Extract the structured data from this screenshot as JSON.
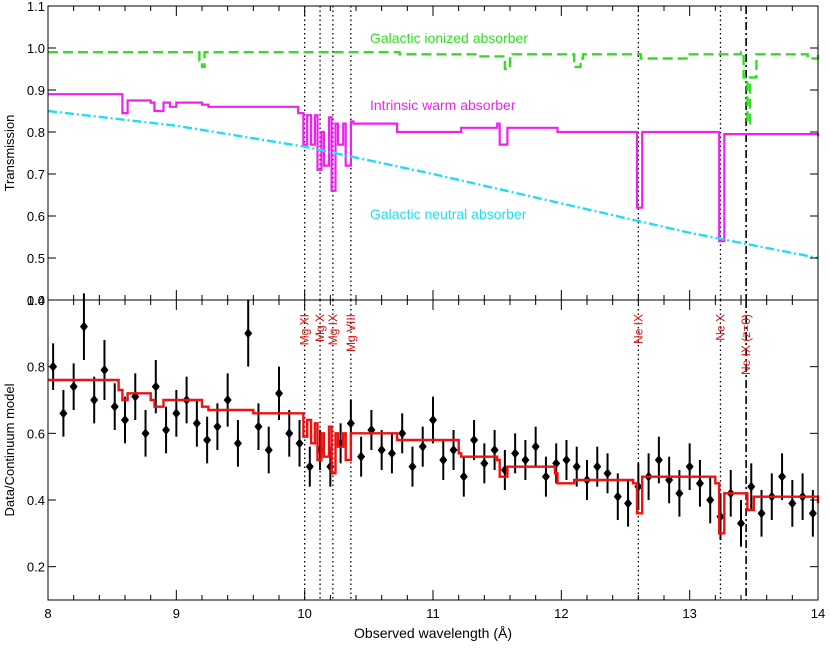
{
  "chart_data": [
    {
      "type": "line",
      "panel": "top",
      "xlabel": "",
      "ylabel": "Transmission",
      "xlim": [
        8,
        14
      ],
      "ylim": [
        0.4,
        1.1
      ],
      "y_ticks": [
        "0.4",
        "0.5",
        "0.6",
        "0.7",
        "0.8",
        "0.9",
        "1.0",
        "1.1"
      ],
      "series": [
        {
          "name": "Galactic ionized absorber",
          "color": "#33dd22",
          "style": "dashed-step",
          "x": [
            8.0,
            9.15,
            9.18,
            9.2,
            9.22,
            9.8,
            10.0,
            10.3,
            10.72,
            10.74,
            10.83,
            10.85,
            11.35,
            11.37,
            11.55,
            11.56,
            11.6,
            11.62,
            12.08,
            12.1,
            12.15,
            12.17,
            12.35,
            12.6,
            12.62,
            13.0,
            13.4,
            13.42,
            13.45,
            13.47,
            13.52,
            13.9,
            13.92,
            14.0
          ],
          "y": [
            0.99,
            0.99,
            0.97,
            0.955,
            0.99,
            0.99,
            0.99,
            0.99,
            0.99,
            0.985,
            0.985,
            0.985,
            0.985,
            0.98,
            0.98,
            0.95,
            0.975,
            0.985,
            0.985,
            0.955,
            0.975,
            0.985,
            0.985,
            0.985,
            0.975,
            0.985,
            0.99,
            0.93,
            0.82,
            0.93,
            0.985,
            0.985,
            0.975,
            0.99
          ]
        },
        {
          "name": "Intrinsic warm absorber",
          "color": "#ee22ee",
          "style": "solid-step",
          "x": [
            8.0,
            8.55,
            8.58,
            8.62,
            8.7,
            8.8,
            8.83,
            8.9,
            8.95,
            9.0,
            9.2,
            9.25,
            9.6,
            9.95,
            9.99,
            10.02,
            10.05,
            10.08,
            10.1,
            10.13,
            10.15,
            10.19,
            10.21,
            10.24,
            10.26,
            10.3,
            10.32,
            10.36,
            10.38,
            10.7,
            10.72,
            11.2,
            11.22,
            11.5,
            11.52,
            11.58,
            11.6,
            11.95,
            11.97,
            12.1,
            12.56,
            12.59,
            12.63,
            13.2,
            13.23,
            13.27,
            14.0
          ],
          "y": [
            0.89,
            0.89,
            0.845,
            0.875,
            0.875,
            0.87,
            0.85,
            0.87,
            0.86,
            0.87,
            0.865,
            0.86,
            0.86,
            0.845,
            0.77,
            0.84,
            0.77,
            0.84,
            0.71,
            0.8,
            0.72,
            0.835,
            0.66,
            0.82,
            0.77,
            0.82,
            0.72,
            0.825,
            0.82,
            0.82,
            0.8,
            0.8,
            0.81,
            0.82,
            0.77,
            0.81,
            0.81,
            0.81,
            0.8,
            0.8,
            0.8,
            0.62,
            0.8,
            0.8,
            0.54,
            0.795,
            0.79
          ]
        },
        {
          "name": "Galactic neutral absorber",
          "color": "#22ddee",
          "style": "dash-dot",
          "x": [
            8.0,
            9.0,
            10.0,
            11.0,
            12.0,
            13.0,
            14.0
          ],
          "y": [
            0.85,
            0.815,
            0.765,
            0.7,
            0.63,
            0.56,
            0.5
          ]
        }
      ],
      "annotations": [
        "Galactic ionized absorber",
        "Intrinsic warm absorber",
        "Galactic neutral absorber"
      ]
    },
    {
      "type": "scatter",
      "panel": "bottom",
      "xlabel": "Observed wavelength (Å)",
      "ylabel": "Data/Continuum model",
      "xlim": [
        8,
        14
      ],
      "ylim": [
        0.1,
        1.0
      ],
      "x_ticks": [
        "8",
        "9",
        "10",
        "11",
        "12",
        "13",
        "14"
      ],
      "y_ticks": [
        "0.2",
        "0.4",
        "0.6",
        "0.8",
        "1.0"
      ],
      "series": [
        {
          "name": "",
          "color": "#000000",
          "style": "points-with-errorbars",
          "x": [
            8.04,
            8.12,
            8.2,
            8.28,
            8.36,
            8.44,
            8.52,
            8.6,
            8.68,
            8.76,
            8.84,
            8.92,
            9.0,
            9.08,
            9.16,
            9.24,
            9.32,
            9.4,
            9.48,
            9.56,
            9.64,
            9.72,
            9.8,
            9.88,
            9.96,
            10.04,
            10.12,
            10.2,
            10.28,
            10.36,
            10.44,
            10.52,
            10.6,
            10.68,
            10.76,
            10.84,
            10.92,
            11.0,
            11.08,
            11.16,
            11.24,
            11.32,
            11.4,
            11.48,
            11.56,
            11.64,
            11.72,
            11.8,
            11.88,
            11.96,
            12.04,
            12.12,
            12.2,
            12.28,
            12.36,
            12.44,
            12.52,
            12.6,
            12.68,
            12.76,
            12.84,
            12.92,
            13.0,
            13.08,
            13.16,
            13.24,
            13.32,
            13.4,
            13.48,
            13.56,
            13.64,
            13.72,
            13.8,
            13.88,
            13.96
          ],
          "y": [
            0.8,
            0.66,
            0.74,
            0.92,
            0.7,
            0.79,
            0.68,
            0.64,
            0.71,
            0.6,
            0.74,
            0.61,
            0.66,
            0.7,
            0.63,
            0.58,
            0.62,
            0.7,
            0.57,
            0.9,
            0.62,
            0.55,
            0.72,
            0.6,
            0.57,
            0.5,
            0.55,
            0.5,
            0.57,
            0.63,
            0.53,
            0.61,
            0.55,
            0.54,
            0.6,
            0.5,
            0.56,
            0.64,
            0.52,
            0.55,
            0.47,
            0.58,
            0.51,
            0.55,
            0.49,
            0.54,
            0.52,
            0.56,
            0.47,
            0.51,
            0.52,
            0.5,
            0.46,
            0.5,
            0.48,
            0.41,
            0.39,
            0.44,
            0.47,
            0.52,
            0.46,
            0.42,
            0.5,
            0.45,
            0.4,
            0.35,
            0.42,
            0.33,
            0.44,
            0.36,
            0.41,
            0.47,
            0.39,
            0.41,
            0.36
          ],
          "err": [
            0.07,
            0.07,
            0.07,
            0.1,
            0.07,
            0.09,
            0.07,
            0.07,
            0.07,
            0.07,
            0.08,
            0.07,
            0.07,
            0.07,
            0.07,
            0.07,
            0.07,
            0.08,
            0.07,
            0.1,
            0.07,
            0.07,
            0.08,
            0.07,
            0.07,
            0.06,
            0.06,
            0.06,
            0.06,
            0.07,
            0.06,
            0.06,
            0.06,
            0.06,
            0.06,
            0.06,
            0.06,
            0.07,
            0.06,
            0.06,
            0.06,
            0.06,
            0.06,
            0.06,
            0.06,
            0.06,
            0.06,
            0.06,
            0.06,
            0.06,
            0.06,
            0.06,
            0.06,
            0.06,
            0.06,
            0.07,
            0.07,
            0.07,
            0.07,
            0.07,
            0.07,
            0.07,
            0.07,
            0.07,
            0.07,
            0.07,
            0.07,
            0.07,
            0.07,
            0.07,
            0.07,
            0.07,
            0.07,
            0.07,
            0.07
          ]
        },
        {
          "name": "",
          "color": "#ee1111",
          "style": "solid-step",
          "x": [
            8.0,
            8.55,
            8.58,
            8.62,
            8.7,
            8.8,
            8.83,
            8.9,
            9.0,
            9.2,
            9.25,
            9.6,
            9.95,
            9.99,
            10.02,
            10.05,
            10.08,
            10.1,
            10.13,
            10.15,
            10.19,
            10.21,
            10.24,
            10.26,
            10.3,
            10.32,
            10.36,
            10.38,
            10.72,
            11.2,
            11.22,
            11.5,
            11.52,
            11.58,
            11.6,
            11.95,
            11.97,
            12.1,
            12.56,
            12.59,
            12.63,
            13.2,
            13.23,
            13.27,
            13.42,
            13.45,
            13.5,
            14.0
          ],
          "y": [
            0.76,
            0.73,
            0.7,
            0.72,
            0.72,
            0.7,
            0.68,
            0.7,
            0.7,
            0.68,
            0.67,
            0.66,
            0.66,
            0.59,
            0.64,
            0.57,
            0.63,
            0.52,
            0.6,
            0.53,
            0.62,
            0.48,
            0.6,
            0.56,
            0.6,
            0.52,
            0.6,
            0.6,
            0.58,
            0.54,
            0.53,
            0.52,
            0.47,
            0.5,
            0.5,
            0.48,
            0.45,
            0.46,
            0.45,
            0.36,
            0.47,
            0.45,
            0.3,
            0.42,
            0.42,
            0.37,
            0.41,
            0.39
          ]
        }
      ]
    }
  ],
  "line_ids": [
    {
      "label": "Mg XI",
      "x": 10.0,
      "style": "dotted"
    },
    {
      "label": "Mg X",
      "x": 10.12,
      "style": "dotted"
    },
    {
      "label": "Mg IX",
      "x": 10.22,
      "style": "dotted"
    },
    {
      "label": "Mg VIII",
      "x": 10.36,
      "style": "dotted"
    },
    {
      "label": "Ne IX",
      "x": 12.6,
      "style": "dotted"
    },
    {
      "label": "Ne X",
      "x": 13.24,
      "style": "dotted"
    },
    {
      "label": "Ne IX (z=0)",
      "x": 13.44,
      "style": "dash-dot"
    }
  ]
}
